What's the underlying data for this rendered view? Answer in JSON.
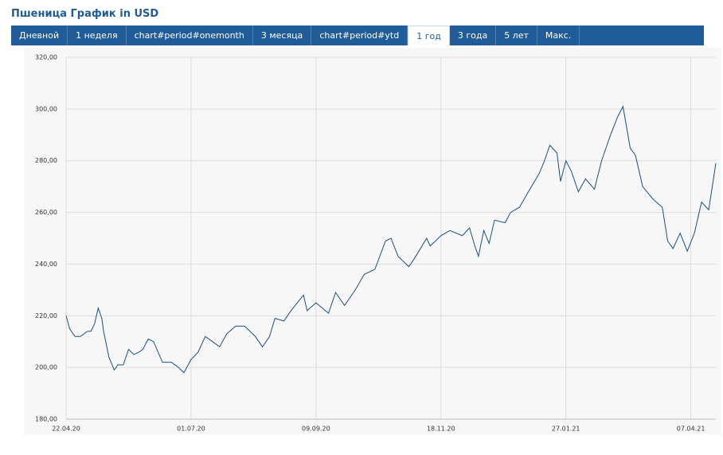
{
  "header": {
    "title": "Пшеница График in USD"
  },
  "tabs": [
    "Дневной",
    "1 неделя",
    "chart#period#onemonth",
    "3 месяца",
    "chart#period#ytd",
    "1 год",
    "3 года",
    "5 лет",
    "Макс."
  ],
  "active_tab": 5,
  "chart_data": {
    "type": "line",
    "color": "#1a4f86",
    "grid": true,
    "xlim": [
      "2020-04-22",
      "2021-04-21"
    ],
    "xticks": [
      {
        "value": "2020-04-22",
        "label": "22.04.20"
      },
      {
        "value": "2020-07-01",
        "label": "01.07.20"
      },
      {
        "value": "2020-09-09",
        "label": "09.09.20"
      },
      {
        "value": "2020-11-18",
        "label": "18.11.20"
      },
      {
        "value": "2021-01-27",
        "label": "27.01.21"
      },
      {
        "value": "2021-04-07",
        "label": "07.04.21"
      }
    ],
    "ylim": [
      180,
      320
    ],
    "yticks": [
      {
        "value": 180,
        "label": "180,00"
      },
      {
        "value": 200,
        "label": "200,00"
      },
      {
        "value": 220,
        "label": "220,00"
      },
      {
        "value": 240,
        "label": "240,00"
      },
      {
        "value": 260,
        "label": "260,00"
      },
      {
        "value": 280,
        "label": "280,00"
      },
      {
        "value": 300,
        "label": "300,00"
      },
      {
        "value": 320,
        "label": "320,00"
      }
    ],
    "x": [
      "2020-04-22",
      "2020-04-24",
      "2020-04-27",
      "2020-04-30",
      "2020-05-04",
      "2020-05-06",
      "2020-05-08",
      "2020-05-10",
      "2020-05-12",
      "2020-05-13",
      "2020-05-16",
      "2020-05-19",
      "2020-05-21",
      "2020-05-24",
      "2020-05-27",
      "2020-05-30",
      "2020-06-02",
      "2020-06-04",
      "2020-06-07",
      "2020-06-10",
      "2020-06-15",
      "2020-06-20",
      "2020-06-24",
      "2020-06-27",
      "2020-07-01",
      "2020-07-05",
      "2020-07-09",
      "2020-07-13",
      "2020-07-17",
      "2020-07-21",
      "2020-07-26",
      "2020-07-31",
      "2020-08-06",
      "2020-08-10",
      "2020-08-14",
      "2020-08-17",
      "2020-08-22",
      "2020-08-26",
      "2020-09-02",
      "2020-09-04",
      "2020-09-09",
      "2020-09-16",
      "2020-09-20",
      "2020-09-25",
      "2020-10-01",
      "2020-10-06",
      "2020-10-12",
      "2020-10-18",
      "2020-10-21",
      "2020-10-25",
      "2020-10-31",
      "2020-11-03",
      "2020-11-10",
      "2020-11-12",
      "2020-11-18",
      "2020-11-23",
      "2020-11-30",
      "2020-12-04",
      "2020-12-07",
      "2020-12-09",
      "2020-12-12",
      "2020-12-15",
      "2020-12-18",
      "2020-12-24",
      "2020-12-27",
      "2021-01-01",
      "2021-01-06",
      "2021-01-12",
      "2021-01-15",
      "2021-01-18",
      "2021-01-22",
      "2021-01-24",
      "2021-01-27",
      "2021-01-30",
      "2021-02-03",
      "2021-02-07",
      "2021-02-12",
      "2021-02-16",
      "2021-02-21",
      "2021-02-25",
      "2021-02-28",
      "2021-03-04",
      "2021-03-07",
      "2021-03-11",
      "2021-03-17",
      "2021-03-22",
      "2021-03-25",
      "2021-03-28",
      "2021-04-01",
      "2021-04-05",
      "2021-04-09",
      "2021-04-13",
      "2021-04-17",
      "2021-04-21"
    ],
    "values": [
      220,
      215,
      212,
      212,
      214,
      214,
      217,
      223,
      219,
      214,
      204,
      199,
      201,
      201,
      207,
      205,
      206,
      207,
      211,
      210,
      202,
      202,
      200,
      198,
      203,
      206,
      212,
      210,
      208,
      213,
      216,
      216,
      212,
      208,
      212,
      219,
      218,
      222,
      228,
      222,
      225,
      221,
      229,
      224,
      230,
      236,
      238,
      249,
      250,
      243,
      239,
      242,
      250,
      247,
      251,
      253,
      251,
      254,
      247,
      243,
      253,
      248,
      257,
      256,
      260,
      262,
      268,
      275,
      280,
      286,
      283,
      272,
      280,
      276,
      268,
      273,
      269,
      280,
      290,
      297,
      301,
      285,
      282,
      270,
      265,
      262,
      249,
      246,
      252,
      245,
      252,
      264,
      261,
      279
    ]
  }
}
